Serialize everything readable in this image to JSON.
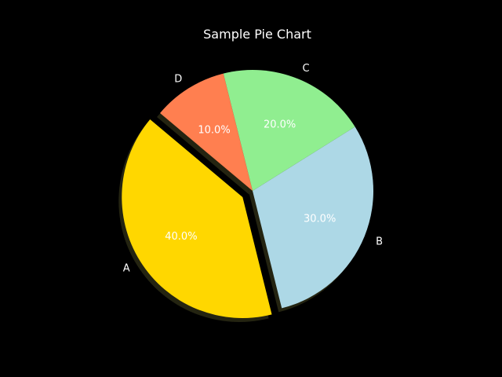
{
  "chart_data": {
    "type": "pie",
    "title": "Sample Pie Chart",
    "labels": [
      "A",
      "B",
      "C",
      "D"
    ],
    "values": [
      40,
      30,
      20,
      10
    ],
    "percent_labels": [
      "40.0%",
      "30.0%",
      "20.0%",
      "10.0%"
    ],
    "colors": [
      "#ffd700",
      "#add8e6",
      "#90ee90",
      "#ff7f50"
    ],
    "exploded": [
      "A"
    ],
    "shadow": true,
    "start_angle_deg": 140,
    "direction": "counterclockwise"
  },
  "colors": {
    "background": "#000000",
    "text": "#ffffff"
  }
}
